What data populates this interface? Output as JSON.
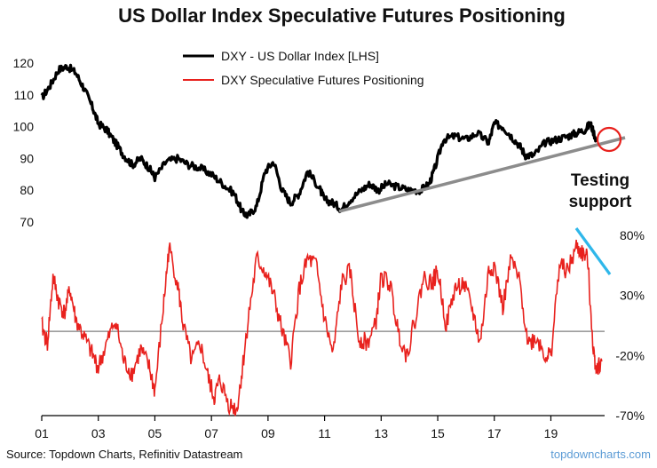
{
  "chart_data": {
    "type": "line",
    "title": "US Dollar Index Speculative Futures Positioning",
    "x_ticks": [
      "01",
      "03",
      "05",
      "07",
      "09",
      "11",
      "13",
      "15",
      "17",
      "19"
    ],
    "x_range": [
      2001.0,
      2020.9
    ],
    "left_axis": {
      "ticks": [
        "70",
        "80",
        "90",
        "100",
        "110",
        "120"
      ],
      "range": [
        70,
        122
      ]
    },
    "right_axis": {
      "ticks": [
        "80%",
        "30%",
        "-20%",
        "-70%"
      ],
      "range": [
        -70,
        85
      ]
    },
    "legend": [
      {
        "label": "DXY - US Dollar Index [LHS]",
        "color": "#000000"
      },
      {
        "label": "DXY Speculative Futures Positioning",
        "color": "#e8211d"
      }
    ],
    "series": [
      {
        "name": "DXY - US Dollar Index [LHS]",
        "axis": "left",
        "color": "#000000",
        "x": [
          2001.0,
          2001.3,
          2001.6,
          2001.9,
          2002.2,
          2002.5,
          2002.8,
          2003.0,
          2003.3,
          2003.6,
          2003.9,
          2004.2,
          2004.5,
          2004.8,
          2005.0,
          2005.4,
          2005.8,
          2006.2,
          2006.6,
          2007.0,
          2007.4,
          2007.8,
          2008.1,
          2008.3,
          2008.6,
          2008.9,
          2009.2,
          2009.5,
          2009.8,
          2010.1,
          2010.4,
          2010.8,
          2011.0,
          2011.3,
          2011.6,
          2011.9,
          2012.3,
          2012.6,
          2012.9,
          2013.2,
          2013.6,
          2014.0,
          2014.4,
          2014.7,
          2014.9,
          2015.2,
          2015.6,
          2016.0,
          2016.4,
          2016.8,
          2017.0,
          2017.3,
          2017.6,
          2017.9,
          2018.1,
          2018.4,
          2018.8,
          2019.2,
          2019.6,
          2019.9,
          2020.2,
          2020.4,
          2020.6
        ],
        "values": [
          109,
          113,
          118,
          119,
          117,
          112,
          106,
          101,
          99,
          95,
          91,
          88,
          90,
          87,
          84,
          89,
          90,
          88,
          87,
          85,
          82,
          79,
          73,
          72,
          75,
          86,
          89,
          80,
          76,
          79,
          86,
          81,
          77,
          76,
          74,
          77,
          80,
          82,
          80,
          82,
          81,
          80,
          80,
          82,
          87,
          96,
          97,
          96,
          98,
          95,
          101,
          100,
          97,
          94,
          91,
          91,
          95,
          96,
          97,
          98,
          99,
          101,
          96
        ]
      },
      {
        "name": "DXY Speculative Futures Positioning",
        "axis": "right",
        "color": "#e8211d",
        "x": [
          2001.0,
          2001.2,
          2001.4,
          2001.6,
          2001.8,
          2002.0,
          2002.2,
          2002.5,
          2002.8,
          2003.0,
          2003.3,
          2003.6,
          2003.9,
          2004.2,
          2004.5,
          2004.8,
          2005.0,
          2005.3,
          2005.5,
          2005.8,
          2006.0,
          2006.3,
          2006.6,
          2006.9,
          2007.1,
          2007.3,
          2007.6,
          2007.9,
          2008.1,
          2008.3,
          2008.6,
          2008.9,
          2009.2,
          2009.5,
          2009.8,
          2010.1,
          2010.4,
          2010.7,
          2011.0,
          2011.3,
          2011.6,
          2011.9,
          2012.2,
          2012.5,
          2012.8,
          2013.0,
          2013.3,
          2013.6,
          2013.9,
          2014.2,
          2014.5,
          2014.8,
          2015.0,
          2015.3,
          2015.6,
          2015.9,
          2016.2,
          2016.5,
          2016.8,
          2017.0,
          2017.3,
          2017.6,
          2017.9,
          2018.2,
          2018.5,
          2018.8,
          2019.0,
          2019.3,
          2019.6,
          2019.9,
          2020.1,
          2020.3,
          2020.5,
          2020.6,
          2020.8
        ],
        "values": [
          5,
          -10,
          45,
          25,
          15,
          35,
          10,
          -5,
          -20,
          -30,
          -10,
          10,
          -25,
          -35,
          -15,
          -30,
          -50,
          20,
          70,
          40,
          5,
          -25,
          -10,
          -40,
          -55,
          -40,
          -60,
          -65,
          -30,
          10,
          60,
          50,
          30,
          0,
          -25,
          35,
          60,
          55,
          10,
          -20,
          40,
          50,
          -5,
          -10,
          5,
          45,
          40,
          0,
          -20,
          10,
          45,
          40,
          50,
          5,
          35,
          40,
          20,
          -10,
          50,
          55,
          20,
          60,
          40,
          -10,
          -5,
          -20,
          -20,
          55,
          50,
          70,
          65,
          60,
          -15,
          -30,
          -25
        ]
      }
    ],
    "annotations": {
      "text_line1": "Testing",
      "text_line2": "support"
    }
  },
  "footer": {
    "source": "Source: Topdown Charts, Refinitiv Datastream",
    "brand": "topdowncharts.com"
  }
}
